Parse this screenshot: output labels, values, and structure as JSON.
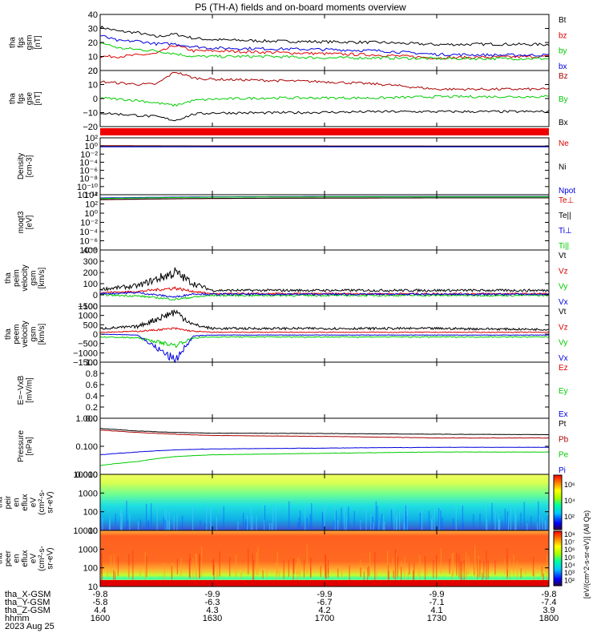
{
  "title": "P5 (TH-A) fields and on-board moments overview",
  "panels": [
    {
      "id": "fgs-gsm",
      "ylabel": [
        "tha",
        "fgs",
        "gsm",
        "[nT]"
      ],
      "yticks": [
        "40",
        "30",
        "20",
        "10",
        "0"
      ],
      "legend": [
        {
          "text": "Bt",
          "color": "#000000"
        },
        {
          "text": "bz",
          "color": "#dd0000"
        },
        {
          "text": "by",
          "color": "#00cc00"
        },
        {
          "text": "bx",
          "color": "#0000dd"
        }
      ]
    },
    {
      "id": "fgs-gse",
      "ylabel": [
        "tha",
        "fgs",
        "gse",
        "[nT]"
      ],
      "yticks": [
        "20",
        "10",
        "0",
        "−10",
        "−20"
      ],
      "legend": [
        {
          "text": "Bz",
          "color": "#aa0000"
        },
        {
          "text": "By",
          "color": "#00cc00"
        },
        {
          "text": "Bx",
          "color": "#000000"
        }
      ]
    },
    {
      "id": "density",
      "ylabel": [
        "Density",
        "[cm-3]"
      ],
      "yticks": [
        "10²",
        "10⁰",
        "10⁻²",
        "10⁻⁴",
        "10⁻⁶",
        "10⁻⁸",
        "10⁻¹⁰",
        "10⁻¹²"
      ],
      "legend": [
        {
          "text": "Ne",
          "color": "#dd0000"
        },
        {
          "text": "Ni",
          "color": "#000000"
        },
        {
          "text": "Npot",
          "color": "#0000dd"
        }
      ]
    },
    {
      "id": "temperature",
      "ylabel": [
        "moqt3",
        "[eV]"
      ],
      "yticks": [
        "10⁴",
        "10²",
        "10⁰",
        "10⁻²",
        "10⁻⁴",
        "10⁻⁶",
        "10⁻⁸"
      ],
      "legend": [
        {
          "text": "Te⊥",
          "color": "#dd0000"
        },
        {
          "text": "Te||",
          "color": "#000000"
        },
        {
          "text": "Ti⊥",
          "color": "#0000dd"
        },
        {
          "text": "Ti||",
          "color": "#00cc00"
        }
      ]
    },
    {
      "id": "peim-velocity",
      "ylabel": [
        "tha",
        "peim",
        "velocity",
        "gsm",
        "[km/s]"
      ],
      "yticks": [
        "400",
        "300",
        "200",
        "100",
        "0",
        "−100"
      ],
      "legend": [
        {
          "text": "Vt",
          "color": "#000000"
        },
        {
          "text": "Vz",
          "color": "#dd0000"
        },
        {
          "text": "Vy",
          "color": "#00cc00"
        },
        {
          "text": "Vx",
          "color": "#0000dd"
        }
      ]
    },
    {
      "id": "peem-velocity",
      "ylabel": [
        "tha",
        "peem",
        "velocity",
        "gsm",
        "[km/s]"
      ],
      "yticks": [
        "1500",
        "1000",
        "500",
        "0",
        "−500",
        "−1000",
        "−1500"
      ],
      "legend": [
        {
          "text": "Vt",
          "color": "#000000"
        },
        {
          "text": "Vz",
          "color": "#dd0000"
        },
        {
          "text": "Vy",
          "color": "#00cc00"
        },
        {
          "text": "Vx",
          "color": "#0000dd"
        }
      ]
    },
    {
      "id": "efield",
      "ylabel": [
        "E=−VxB",
        "[mV/m]"
      ],
      "yticks": [
        "1.0",
        "0.8",
        "0.6",
        "0.4",
        "0.2",
        "0.0"
      ],
      "legend": [
        {
          "text": "Ez",
          "color": "#dd0000"
        },
        {
          "text": "Ey",
          "color": "#00cc00"
        },
        {
          "text": "Ex",
          "color": "#0000dd"
        }
      ]
    },
    {
      "id": "pressure",
      "ylabel": [
        "Pressure",
        "[nPa]"
      ],
      "yticks": [
        "1.000",
        "0.100",
        "0.010"
      ],
      "legend": [
        {
          "text": "Pt",
          "color": "#000000"
        },
        {
          "text": "Pb",
          "color": "#aa0000"
        },
        {
          "text": "Pe",
          "color": "#00cc00"
        },
        {
          "text": "Pi",
          "color": "#0000dd"
        }
      ]
    },
    {
      "id": "peir-spec",
      "ylabel": [
        "tha",
        "peir",
        "en",
        "eflux",
        "eV",
        "(cm²-s-",
        "sr-eV)"
      ],
      "yticks": [
        "10000",
        "1000",
        "100",
        "10"
      ],
      "legend": []
    },
    {
      "id": "peer-spec",
      "ylabel": [
        "tha",
        "peer",
        "en",
        "eflux",
        "eV",
        "(cm²-s-",
        "sr-eV)"
      ],
      "yticks": [
        "10000",
        "1000",
        "100",
        "10"
      ],
      "legend": []
    }
  ],
  "colorbar": {
    "label": "[eV/(cm^2-s-sr-eV)] (All Qs)",
    "upper_ticks": [
      "10⁶",
      "10⁴",
      "10²"
    ],
    "lower_ticks": [
      "10⁸",
      "10⁷",
      "10⁶",
      "10⁵",
      "10⁴",
      "10³",
      "10²"
    ]
  },
  "xaxis": {
    "row_labels": [
      "tha_X-GSM",
      "tha_Y-GSM",
      "tha_Z-GSM",
      "hhmm",
      "2023 Aug 25"
    ],
    "columns": [
      {
        "x": "-9.8",
        "y": "-5.8",
        "z": "4.4",
        "t": "1600"
      },
      {
        "x": "-9.9",
        "y": "-6.3",
        "z": "4.3",
        "t": "1630"
      },
      {
        "x": "-9.9",
        "y": "-6.7",
        "z": "4.2",
        "t": "1700"
      },
      {
        "x": "-9.9",
        "y": "-7.1",
        "z": "4.1",
        "t": "1730"
      },
      {
        "x": "-9.8",
        "y": "-7.4",
        "z": "3.9",
        "t": "1800"
      }
    ]
  },
  "chart_data": {
    "type": "line",
    "title": "P5 (TH-A) fields and on-board moments overview",
    "xlabel": "hhmm",
    "x_ticks": [
      "1600",
      "1630",
      "1700",
      "1730",
      "1800"
    ],
    "xlim_minutes": [
      0,
      120
    ],
    "panels": [
      {
        "name": "tha fgs gsm [nT]",
        "ylim": [
          0,
          40
        ],
        "series": [
          {
            "name": "Bt",
            "x": [
              0,
              5,
              10,
              15,
              20,
              25,
              30,
              45,
              60,
              75,
              90,
              105,
              120
            ],
            "values": [
              31,
              28,
              27,
              24,
              26,
              23,
              22,
              21,
              20.5,
              20,
              18.5,
              18.8,
              18.5
            ]
          },
          {
            "name": "bz",
            "x": [
              0,
              5,
              10,
              15,
              20,
              25,
              30,
              45,
              60,
              75,
              90,
              105,
              120
            ],
            "values": [
              10,
              10,
              11,
              12,
              18,
              14,
              14,
              13,
              12,
              11,
              9,
              9.5,
              10
            ]
          },
          {
            "name": "by",
            "x": [
              0,
              5,
              10,
              15,
              20,
              25,
              30,
              45,
              60,
              75,
              90,
              105,
              120
            ],
            "values": [
              20,
              16,
              15,
              14,
              12,
              10,
              10,
              10,
              9,
              9,
              8.5,
              8.5,
              8.5
            ]
          },
          {
            "name": "bx",
            "x": [
              0,
              5,
              10,
              15,
              20,
              25,
              30,
              45,
              60,
              75,
              90,
              105,
              120
            ],
            "values": [
              25,
              21,
              21,
              19,
              19,
              17,
              16,
              15.5,
              15,
              14,
              11.5,
              11,
              11
            ]
          }
        ]
      },
      {
        "name": "tha fgs gse [nT]",
        "ylim": [
          -25,
          20
        ],
        "series": [
          {
            "name": "Bz",
            "x": [
              0,
              5,
              10,
              15,
              20,
              25,
              30,
              45,
              60,
              75,
              90,
              105,
              120
            ],
            "values": [
              11,
              10,
              9,
              9,
              19,
              14,
              13,
              12,
              11,
              9,
              5,
              5,
              5
            ]
          },
          {
            "name": "By",
            "x": [
              0,
              5,
              10,
              15,
              20,
              25,
              30,
              45,
              60,
              75,
              90,
              105,
              120
            ],
            "values": [
              -2,
              -3,
              -4,
              -6,
              -8,
              -4,
              -3,
              -2,
              -2,
              -2,
              -1,
              -1,
              -1
            ]
          },
          {
            "name": "Bx",
            "x": [
              0,
              5,
              10,
              15,
              20,
              25,
              30,
              45,
              60,
              75,
              90,
              105,
              120
            ],
            "values": [
              -14,
              -15,
              -16,
              -17,
              -20,
              -15,
              -14,
              -14,
              -13.5,
              -13,
              -13,
              -13,
              -13
            ]
          }
        ]
      },
      {
        "name": "Density [cm-3]",
        "yscale": "log",
        "ylim": [
          1e-12,
          100
        ],
        "series": [
          {
            "name": "Ne",
            "x": [
              0,
              30,
              60,
              90,
              120
            ],
            "values": [
              1.2,
              1.0,
              1.0,
              0.9,
              0.9
            ]
          },
          {
            "name": "Ni",
            "x": [
              0,
              30,
              60,
              90,
              120
            ],
            "values": [
              1.0,
              0.9,
              0.9,
              0.9,
              0.9
            ]
          },
          {
            "name": "Npot",
            "x": [
              0,
              30,
              60,
              90,
              120
            ],
            "values": [
              0.6,
              0.6,
              0.6,
              0.6,
              0.6
            ]
          }
        ]
      },
      {
        "name": "moqt3 [eV]",
        "yscale": "log",
        "ylim": [
          1e-08,
          10000
        ],
        "series": [
          {
            "name": "Te⊥",
            "x": [
              0,
              30,
              60,
              90,
              120
            ],
            "values": [
              800,
              1500,
              1800,
              2000,
              2000
            ]
          },
          {
            "name": "Te||",
            "x": [
              0,
              30,
              60,
              90,
              120
            ],
            "values": [
              900,
              1600,
              1900,
              2100,
              2100
            ]
          },
          {
            "name": "Ti⊥",
            "x": [
              0,
              30,
              60,
              90,
              120
            ],
            "values": [
              2000,
              3500,
              4000,
              4000,
              4000
            ]
          },
          {
            "name": "Ti||",
            "x": [
              0,
              30,
              60,
              90,
              120
            ],
            "values": [
              1500,
              3000,
              3500,
              3500,
              3500
            ]
          }
        ]
      },
      {
        "name": "tha peim velocity gsm [km/s]",
        "ylim": [
          -100,
          400
        ],
        "series": [
          {
            "name": "Vt",
            "x": [
              0,
              10,
              20,
              25,
              30,
              60,
              90,
              120
            ],
            "values": [
              50,
              80,
              200,
              100,
              40,
              40,
              40,
              40
            ]
          },
          {
            "name": "Vz",
            "x": [
              0,
              10,
              20,
              25,
              30,
              60,
              90,
              120
            ],
            "values": [
              20,
              30,
              60,
              30,
              10,
              10,
              10,
              10
            ]
          },
          {
            "name": "Vy",
            "x": [
              0,
              10,
              20,
              25,
              30,
              60,
              90,
              120
            ],
            "values": [
              0,
              -10,
              -40,
              -20,
              -5,
              -5,
              -5,
              -5
            ]
          },
          {
            "name": "Vx",
            "x": [
              0,
              10,
              20,
              25,
              30,
              60,
              90,
              120
            ],
            "values": [
              10,
              20,
              -20,
              10,
              5,
              5,
              5,
              5
            ]
          }
        ]
      },
      {
        "name": "tha peem velocity gsm [km/s]",
        "ylim": [
          -1500,
          1500
        ],
        "series": [
          {
            "name": "Vt",
            "x": [
              0,
              10,
              20,
              25,
              30,
              60,
              90,
              120
            ],
            "values": [
              300,
              400,
              1200,
              500,
              300,
              300,
              300,
              250
            ]
          },
          {
            "name": "Vz",
            "x": [
              0,
              10,
              20,
              25,
              30,
              60,
              90,
              120
            ],
            "values": [
              100,
              150,
              300,
              150,
              100,
              100,
              100,
              100
            ]
          },
          {
            "name": "Vy",
            "x": [
              0,
              10,
              20,
              25,
              30,
              60,
              90,
              120
            ],
            "values": [
              -150,
              -200,
              -600,
              -200,
              -150,
              -150,
              -150,
              -150
            ]
          },
          {
            "name": "Vx",
            "x": [
              0,
              10,
              20,
              25,
              30,
              60,
              90,
              120
            ],
            "values": [
              0,
              -50,
              -1400,
              -100,
              -50,
              -50,
              -50,
              -50
            ]
          }
        ]
      },
      {
        "name": "E=-VxB [mV/m]",
        "ylim": [
          0,
          1
        ],
        "series": []
      },
      {
        "name": "Pressure [nPa]",
        "yscale": "log",
        "ylim": [
          0.004,
          1.3
        ],
        "series": [
          {
            "name": "Pt",
            "x": [
              0,
              10,
              20,
              30,
              60,
              90,
              120
            ],
            "values": [
              0.45,
              0.35,
              0.3,
              0.28,
              0.27,
              0.25,
              0.24
            ]
          },
          {
            "name": "Pb",
            "x": [
              0,
              10,
              20,
              30,
              60,
              90,
              120
            ],
            "values": [
              0.38,
              0.3,
              0.25,
              0.22,
              0.2,
              0.17,
              0.17
            ]
          },
          {
            "name": "Pe",
            "x": [
              0,
              10,
              20,
              30,
              60,
              90,
              120
            ],
            "values": [
              0.01,
              0.015,
              0.025,
              0.03,
              0.035,
              0.04,
              0.04
            ]
          },
          {
            "name": "Pi",
            "x": [
              0,
              10,
              20,
              30,
              60,
              90,
              120
            ],
            "values": [
              0.03,
              0.04,
              0.05,
              0.055,
              0.06,
              0.065,
              0.065
            ]
          }
        ]
      },
      {
        "name": "tha peir en eflux",
        "type": "heatmap",
        "ylim": [
          5,
          30000
        ],
        "zscale": "log"
      },
      {
        "name": "tha peer en eflux",
        "type": "heatmap",
        "ylim": [
          5,
          30000
        ],
        "zscale": "log"
      }
    ]
  }
}
